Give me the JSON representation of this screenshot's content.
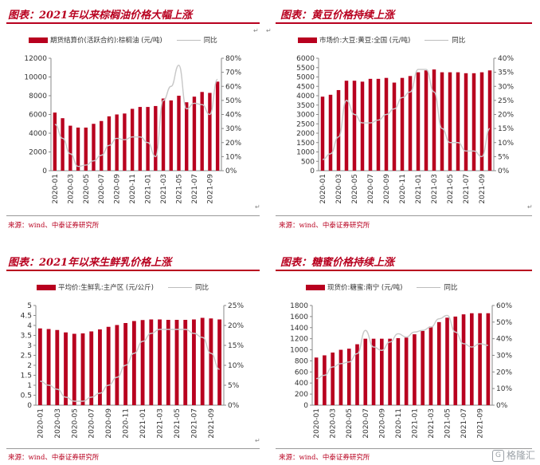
{
  "charts": [
    {
      "title": "图表：2021年以来棕榈油价格大幅上涨",
      "source": "来源：wind、中泰证券研究所",
      "legend_bar": "期货结算价(活跃合约):棕榈油  (元/吨)",
      "legend_line": "同比",
      "chart_data": {
        "type": "bar",
        "categories": [
          "2020-01",
          "2020-02",
          "2020-03",
          "2020-04",
          "2020-05",
          "2020-06",
          "2020-07",
          "2020-08",
          "2020-09",
          "2020-10",
          "2020-11",
          "2020-12",
          "2021-01",
          "2021-02",
          "2021-03",
          "2021-04",
          "2021-05",
          "2021-06",
          "2021-07",
          "2021-08",
          "2021-09",
          "2021-10"
        ],
        "x_tick_labels": [
          "2020-01",
          "2020-03",
          "2020-05",
          "2020-07",
          "2020-09",
          "2020-11",
          "2021-01",
          "2021-03",
          "2021-05",
          "2021-07",
          "2021-09"
        ],
        "series": [
          {
            "name": "期货结算价(活跃合约):棕榈油  (元/吨)",
            "axis": "left",
            "type": "bar",
            "values": [
              6200,
              5600,
              4800,
              4600,
              4600,
              5000,
              5300,
              5800,
              6000,
              6100,
              6600,
              6800,
              6800,
              6900,
              7700,
              7500,
              8000,
              7300,
              7900,
              8400,
              8300,
              9500
            ]
          },
          {
            "name": "同比",
            "axis": "right",
            "type": "line",
            "values": [
              33,
              23,
              12,
              3,
              4,
              7,
              11,
              18,
              23,
              22,
              24,
              24,
              20,
              10,
              50,
              60,
              75,
              44,
              48,
              47,
              40,
              65
            ]
          }
        ],
        "y_left": {
          "min": 0,
          "max": 12000,
          "ticks": [
            0,
            2000,
            4000,
            6000,
            8000,
            10000,
            12000
          ]
        },
        "y_right": {
          "min": 0,
          "max": 80,
          "ticks": [
            "0%",
            "10%",
            "20%",
            "30%",
            "40%",
            "50%",
            "60%",
            "70%",
            "80%"
          ]
        }
      }
    },
    {
      "title": "图表：黄豆价格持续上涨",
      "source": "来源：wind、中泰证券研究所",
      "legend_bar": "市场价:大豆:黄豆:全国 (元/吨)",
      "legend_line": "同比",
      "chart_data": {
        "type": "bar",
        "categories": [
          "2020-01",
          "2020-02",
          "2020-03",
          "2020-04",
          "2020-05",
          "2020-06",
          "2020-07",
          "2020-08",
          "2020-09",
          "2020-10",
          "2020-11",
          "2020-12",
          "2021-01",
          "2021-02",
          "2021-03",
          "2021-04",
          "2021-05",
          "2021-06",
          "2021-07",
          "2021-08",
          "2021-09",
          "2021-10"
        ],
        "x_tick_labels": [
          "2020-01",
          "2020-03",
          "2020-05",
          "2020-07",
          "2020-09",
          "2020-11",
          "2021-01",
          "2021-03",
          "2021-05",
          "2021-07",
          "2021-09"
        ],
        "series": [
          {
            "name": "市场价:大豆:黄豆:全国 (元/吨)",
            "axis": "left",
            "type": "bar",
            "values": [
              3950,
              4050,
              4300,
              4800,
              4800,
              4750,
              4900,
              4900,
              4950,
              4700,
              4950,
              5050,
              5250,
              5350,
              5400,
              5250,
              5250,
              5250,
              5200,
              5200,
              5250,
              5350
            ]
          },
          {
            "name": "同比",
            "axis": "right",
            "type": "line",
            "values": [
              4,
              6,
              12,
              25,
              20,
              17,
              17,
              18,
              20,
              22,
              26,
              28,
              36,
              36,
              28,
              15,
              10,
              10,
              7,
              7,
              5,
              15
            ]
          }
        ],
        "y_left": {
          "min": 0,
          "max": 6000,
          "ticks": [
            0,
            500,
            1000,
            1500,
            2000,
            2500,
            3000,
            3500,
            4000,
            4500,
            5000,
            5500,
            6000
          ]
        },
        "y_right": {
          "min": 0,
          "max": 40,
          "ticks": [
            "0%",
            "5%",
            "10%",
            "15%",
            "20%",
            "25%",
            "30%",
            "35%",
            "40%"
          ]
        }
      }
    },
    {
      "title": "图表：2021年以来生鲜乳价格上涨",
      "source": "来源：wind、中泰证券研究所",
      "legend_bar": "平均价:生鲜乳:主产区 (元/公斤)",
      "legend_line": "同比",
      "chart_data": {
        "type": "bar",
        "categories": [
          "2020-01",
          "2020-02",
          "2020-03",
          "2020-04",
          "2020-05",
          "2020-06",
          "2020-07",
          "2020-08",
          "2020-09",
          "2020-10",
          "2020-11",
          "2020-12",
          "2021-01",
          "2021-02",
          "2021-03",
          "2021-04",
          "2021-05",
          "2021-06",
          "2021-07",
          "2021-08",
          "2021-09",
          "2021-10"
        ],
        "x_tick_labels": [
          "2020-01",
          "2020-03",
          "2020-05",
          "2020-07",
          "2020-09",
          "2020-11",
          "2021-01",
          "2021-03",
          "2021-05",
          "2021-07",
          "2021-09"
        ],
        "series": [
          {
            "name": "平均价:生鲜乳:主产区 (元/公斤)",
            "axis": "left",
            "type": "bar",
            "values": [
              3.85,
              3.82,
              3.77,
              3.65,
              3.58,
              3.6,
              3.7,
              3.8,
              3.93,
              4.02,
              4.12,
              4.22,
              4.27,
              4.3,
              4.3,
              4.28,
              4.28,
              4.28,
              4.3,
              4.38,
              4.35,
              4.3
            ]
          },
          {
            "name": "同比",
            "axis": "right",
            "type": "line",
            "values": [
              6,
              5,
              4,
              2,
              1,
              1,
              2,
              3,
              5,
              7,
              10,
              13,
              16,
              18,
              19,
              19,
              19,
              19,
              18,
              17,
              13,
              9
            ]
          }
        ],
        "y_left": {
          "min": 0,
          "max": 5,
          "ticks": [
            0,
            0.5,
            1,
            1.5,
            2,
            2.5,
            3,
            3.5,
            4,
            4.5,
            5
          ]
        },
        "y_right": {
          "min": 0,
          "max": 25,
          "ticks": [
            "0%",
            "5%",
            "10%",
            "15%",
            "20%",
            "25%"
          ]
        }
      }
    },
    {
      "title": "图表：糖蜜价格持续上涨",
      "source": "来源：wind、中泰证券研究所",
      "legend_bar": "现货价:糖蜜:南宁 (元/吨)",
      "legend_line": "同比",
      "chart_data": {
        "type": "bar",
        "categories": [
          "2020-01",
          "2020-02",
          "2020-03",
          "2020-04",
          "2020-05",
          "2020-06",
          "2020-07",
          "2020-08",
          "2020-09",
          "2020-10",
          "2020-11",
          "2020-12",
          "2021-01",
          "2021-02",
          "2021-03",
          "2021-04",
          "2021-05",
          "2021-06",
          "2021-07",
          "2021-08",
          "2021-09",
          "2021-10"
        ],
        "x_tick_labels": [
          "2020-01",
          "2020-03",
          "2020-05",
          "2020-07",
          "2020-09",
          "2020-11",
          "2021-01",
          "2021-03",
          "2021-05",
          "2021-07",
          "2021-09"
        ],
        "series": [
          {
            "name": "现货价:糖蜜:南宁 (元/吨)",
            "axis": "left",
            "type": "bar",
            "values": [
              860,
              900,
              950,
              1000,
              1020,
              1100,
              1200,
              1200,
              1200,
              1200,
              1210,
              1220,
              1280,
              1340,
              1420,
              1500,
              1580,
              1600,
              1640,
              1660,
              1660,
              1660
            ]
          },
          {
            "name": "同比",
            "axis": "right",
            "type": "line",
            "values": [
              16,
              18,
              23,
              25,
              26,
              31,
              45,
              35,
              33,
              38,
              43,
              41,
              44,
              45,
              47,
              52,
              54,
              44,
              37,
              35,
              37,
              36
            ]
          }
        ],
        "y_left": {
          "min": 0,
          "max": 1800,
          "ticks": [
            0,
            200,
            400,
            600,
            800,
            1000,
            1200,
            1400,
            1600,
            1800
          ]
        },
        "y_right": {
          "min": 0,
          "max": 60,
          "ticks": [
            "0%",
            "10%",
            "20%",
            "30%",
            "40%",
            "50%",
            "60%"
          ]
        }
      }
    }
  ],
  "watermark": "格隆汇",
  "watermark_icon": "G"
}
